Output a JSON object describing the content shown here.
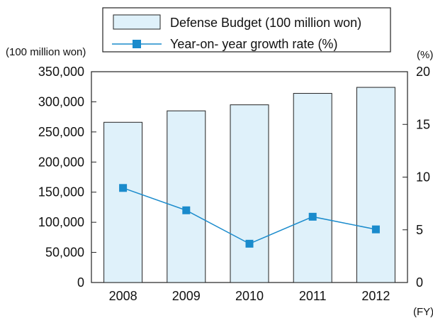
{
  "chart_data": {
    "type": "bar",
    "categories": [
      "2008",
      "2009",
      "2010",
      "2011",
      "2012"
    ],
    "series": [
      {
        "name": "Defense Budget (100 million won)",
        "type": "bar",
        "axis": "left",
        "color": "#dff1fa",
        "values": [
          266000,
          285000,
          295000,
          314000,
          324000
        ]
      },
      {
        "name": "Year-on- year growth rate (%)",
        "type": "line",
        "axis": "right",
        "color": "#1a8bcc",
        "values": [
          8.97,
          6.85,
          3.68,
          6.24,
          5.04
        ]
      }
    ],
    "y_left": {
      "label": "(100 million won)",
      "ylim": [
        0,
        350000
      ],
      "ticks": [
        "0",
        "50,000",
        "100,000",
        "150,000",
        "200,000",
        "250,000",
        "300,000",
        "350,000"
      ]
    },
    "y_right": {
      "label": "(%)",
      "ylim": [
        0,
        20
      ],
      "ticks": [
        "0",
        "5",
        "10",
        "15",
        "20"
      ]
    },
    "x_unit": "(FY)",
    "legend_placement": "top",
    "grid": false
  }
}
